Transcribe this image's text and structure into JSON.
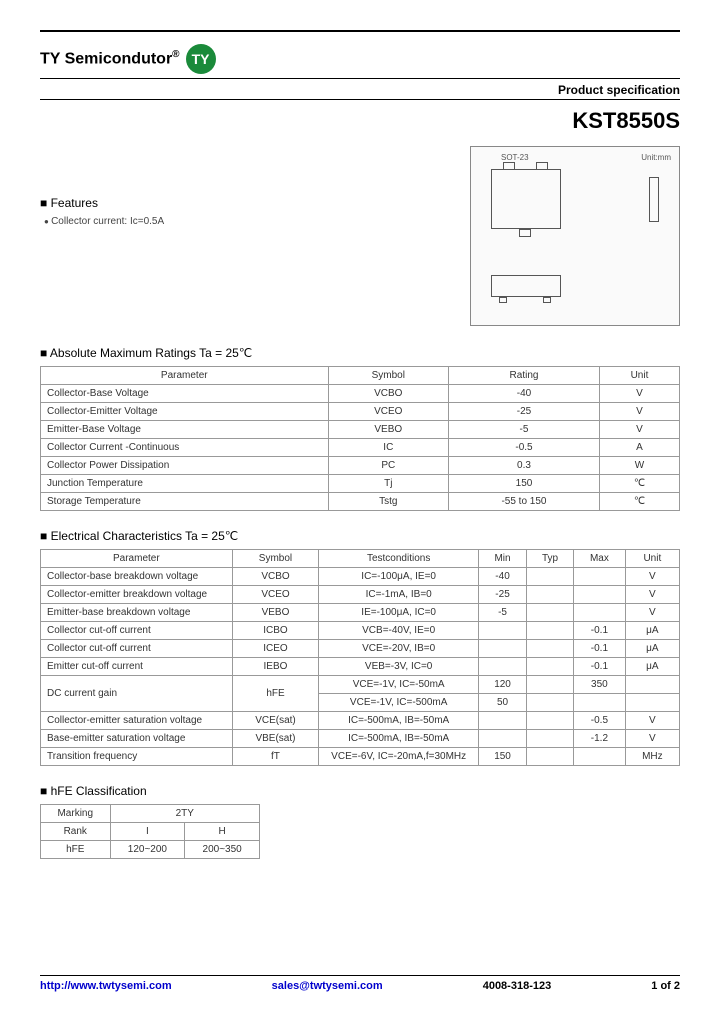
{
  "header": {
    "brand": "TY Semicondutor",
    "reg": "®",
    "logo_text": "TY",
    "logo_bg": "#1a8a3a",
    "spec_label": "Product specification",
    "part_number": "KST8550S"
  },
  "features": {
    "title": "Features",
    "items": [
      "Collector current: Ic=0.5A"
    ]
  },
  "package": {
    "label": "SOT-23",
    "unit_label": "Unit:mm"
  },
  "abs_max": {
    "title": "Absolute Maximum Ratings Ta = 25℃",
    "columns": [
      "Parameter",
      "Symbol",
      "Rating",
      "Unit"
    ],
    "rows": [
      [
        "Collector-Base Voltage",
        "VCBO",
        "-40",
        "V"
      ],
      [
        "Collector-Emitter Voltage",
        "VCEO",
        "-25",
        "V"
      ],
      [
        "Emitter-Base Voltage",
        "VEBO",
        "-5",
        "V"
      ],
      [
        "Collector Current -Continuous",
        "IC",
        "-0.5",
        "A"
      ],
      [
        "Collector Power Dissipation",
        "PC",
        "0.3",
        "W"
      ],
      [
        "Junction Temperature",
        "Tj",
        "150",
        "℃"
      ],
      [
        "Storage Temperature",
        "Tstg",
        "-55 to 150",
        "℃"
      ]
    ]
  },
  "elec": {
    "title": "Electrical Characteristics Ta = 25℃",
    "columns": [
      "Parameter",
      "Symbol",
      "Testconditions",
      "Min",
      "Typ",
      "Max",
      "Unit"
    ],
    "rows": [
      [
        "Collector-base breakdown voltage",
        "VCBO",
        "IC=-100μA, IE=0",
        "-40",
        "",
        "",
        "V"
      ],
      [
        "Collector-emitter breakdown voltage",
        "VCEO",
        "IC=-1mA, IB=0",
        "-25",
        "",
        "",
        "V"
      ],
      [
        "Emitter-base breakdown voltage",
        "VEBO",
        "IE=-100μA, IC=0",
        "-5",
        "",
        "",
        "V"
      ],
      [
        "Collector cut-off current",
        "ICBO",
        "VCB=-40V, IE=0",
        "",
        "",
        "-0.1",
        "μA"
      ],
      [
        "Collector cut-off current",
        "ICEO",
        "VCE=-20V, IB=0",
        "",
        "",
        "-0.1",
        "μA"
      ],
      [
        "Emitter cut-off current",
        "IEBO",
        "VEB=-3V, IC=0",
        "",
        "",
        "-0.1",
        "μA"
      ],
      [
        "DC current gain",
        "hFE",
        "VCE=-1V, IC=-50mA",
        "120",
        "",
        "350",
        ""
      ],
      [
        "",
        "",
        "VCE=-1V, IC=-500mA",
        "50",
        "",
        "",
        ""
      ],
      [
        "Collector-emitter saturation voltage",
        "VCE(sat)",
        "IC=-500mA, IB=-50mA",
        "",
        "",
        "-0.5",
        "V"
      ],
      [
        "Base-emitter saturation voltage",
        "VBE(sat)",
        "IC=-500mA, IB=-50mA",
        "",
        "",
        "-1.2",
        "V"
      ],
      [
        "Transition frequency",
        "fT",
        "VCE=-6V, IC=-20mA,f=30MHz",
        "150",
        "",
        "",
        "MHz"
      ]
    ],
    "dc_gain_rowspan_index": 6
  },
  "hfe": {
    "title": "hFE Classification",
    "rows": [
      [
        "Marking",
        "2TY"
      ],
      [
        "Rank",
        "I",
        "H"
      ],
      [
        "hFE",
        "120~200",
        "200~350"
      ]
    ]
  },
  "footer": {
    "url": "http://www.twtysemi.com",
    "email": "sales@twtysemi.com",
    "phone": "4008-318-123",
    "page": "1 of 2"
  }
}
